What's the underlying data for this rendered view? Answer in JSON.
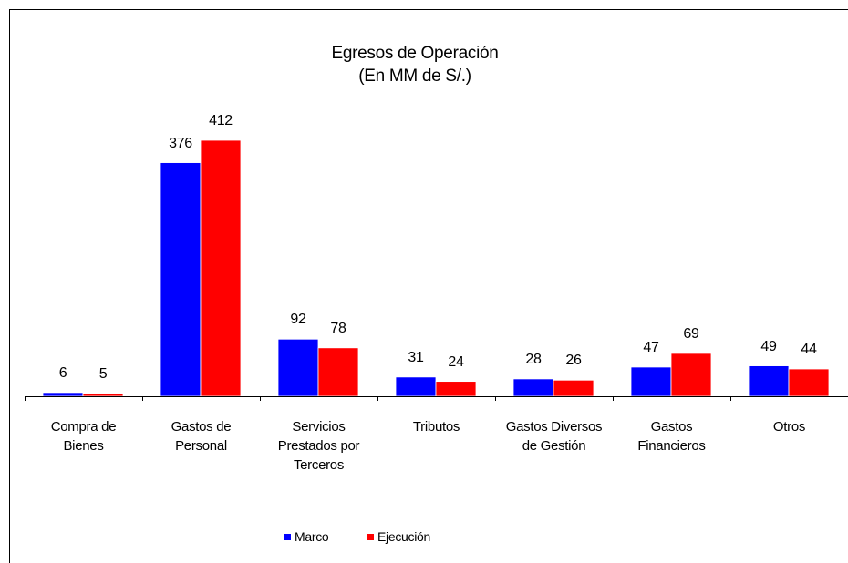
{
  "chart_data": {
    "type": "bar",
    "title": "Egresos de Operación",
    "subtitle": "(En MM de S/.)",
    "categories": [
      "Compra de Bienes",
      "Gastos de Personal",
      "Servicios Prestados por Terceros",
      "Tributos",
      "Gastos Diversos de Gestión",
      "Gastos Financieros",
      "Otros"
    ],
    "series": [
      {
        "name": "Marco",
        "color": "#0000ff",
        "values": [
          6,
          376,
          92,
          31,
          28,
          47,
          49
        ]
      },
      {
        "name": "Ejecución",
        "color": "#ff0000",
        "values": [
          5,
          412,
          78,
          24,
          26,
          69,
          44
        ]
      }
    ],
    "legend": "bottom"
  }
}
